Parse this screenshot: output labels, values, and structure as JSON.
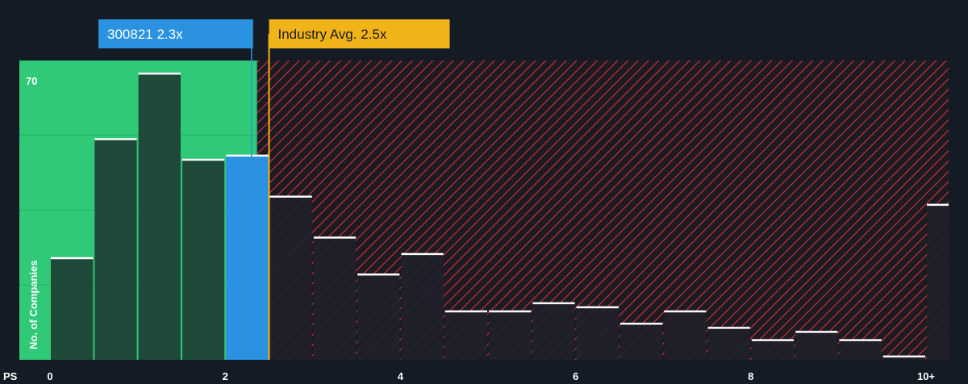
{
  "chart_data": {
    "type": "bar",
    "xlabel": "PS",
    "ylabel": "No. of Companies",
    "y_tick_label": "70",
    "y_tick_value": 70,
    "ylim": [
      0,
      73
    ],
    "x_ticks": [
      "0",
      "2",
      "4",
      "6",
      "8",
      "10+"
    ],
    "x_tick_values": [
      0,
      2,
      4,
      6,
      8,
      10
    ],
    "bin_width": 0.5,
    "bins": [
      {
        "x": 0.0,
        "value": 25
      },
      {
        "x": 0.5,
        "value": 54
      },
      {
        "x": 1.0,
        "value": 70
      },
      {
        "x": 1.5,
        "value": 49
      },
      {
        "x": 2.0,
        "value": 50
      },
      {
        "x": 2.5,
        "value": 40
      },
      {
        "x": 3.0,
        "value": 30
      },
      {
        "x": 3.5,
        "value": 21
      },
      {
        "x": 4.0,
        "value": 26
      },
      {
        "x": 4.5,
        "value": 12
      },
      {
        "x": 5.0,
        "value": 12
      },
      {
        "x": 5.5,
        "value": 14
      },
      {
        "x": 6.0,
        "value": 13
      },
      {
        "x": 6.5,
        "value": 9
      },
      {
        "x": 7.0,
        "value": 12
      },
      {
        "x": 7.5,
        "value": 8
      },
      {
        "x": 8.0,
        "value": 5
      },
      {
        "x": 8.5,
        "value": 7
      },
      {
        "x": 9.0,
        "value": 5
      },
      {
        "x": 9.5,
        "value": 1
      },
      {
        "x": 10.0,
        "value": 38
      }
    ],
    "company": {
      "label": "300821 2.3x",
      "value": 2.3,
      "color": "#2a92e0"
    },
    "industry": {
      "label": "Industry Avg. 2.5x",
      "value": 2.5,
      "color": "#f0b31a"
    },
    "colors": {
      "background": "#151b24",
      "fair_zone": "#2fc978",
      "fair_bar": "#1f4a3a",
      "over_zone_bg": "#1d1a22",
      "over_hatch": "#d0343c",
      "over_bar": "#1e2029",
      "company_bar": "#2a92e0",
      "bar_top": "#ffffff"
    }
  }
}
